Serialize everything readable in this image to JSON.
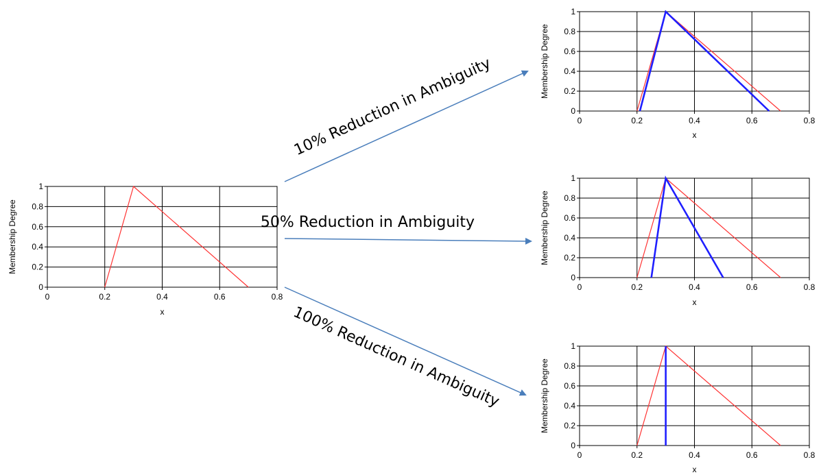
{
  "arrows": [
    {
      "label": "10% Reduction in Ambiguity",
      "color": "#4a7ebb"
    },
    {
      "label": "50% Reduction in Ambiguity",
      "color": "#4a7ebb"
    },
    {
      "label": "100% Reduction in Ambiguity",
      "color": "#4a7ebb"
    }
  ],
  "colors": {
    "original": "#ff3333",
    "reduced": "#1f1fff",
    "grid": "#000000"
  },
  "chart_data": [
    {
      "type": "line",
      "title": "",
      "xlabel": "x",
      "ylabel": "Membership Degree",
      "xlim": [
        0,
        0.8
      ],
      "ylim": [
        0,
        1
      ],
      "xticks": [
        "0",
        "0.2",
        "0.4",
        "0.6",
        "0.8"
      ],
      "yticks": [
        "0",
        "0.2",
        "0.4",
        "0.6",
        "0.8",
        "1"
      ],
      "grid": true,
      "series": [
        {
          "x": [
            0.2,
            0.3,
            0.7
          ],
          "y": [
            0,
            1,
            0
          ],
          "color": "#ff3333"
        }
      ]
    },
    {
      "type": "line",
      "title": "",
      "xlabel": "x",
      "ylabel": "Membership Degree",
      "xlim": [
        0,
        0.8
      ],
      "ylim": [
        0,
        1
      ],
      "xticks": [
        "0",
        "0.2",
        "0.4",
        "0.6",
        "0.8"
      ],
      "yticks": [
        "0",
        "0.2",
        "0.4",
        "0.6",
        "0.8",
        "1"
      ],
      "grid": true,
      "series": [
        {
          "x": [
            0.2,
            0.3,
            0.7
          ],
          "y": [
            0,
            1,
            0
          ],
          "color": "#ff3333"
        },
        {
          "x": [
            0.21,
            0.3,
            0.66
          ],
          "y": [
            0,
            1,
            0
          ],
          "color": "#1f1fff"
        }
      ]
    },
    {
      "type": "line",
      "title": "",
      "xlabel": "x",
      "ylabel": "Membership Degree",
      "xlim": [
        0,
        0.8
      ],
      "ylim": [
        0,
        1
      ],
      "xticks": [
        "0",
        "0.2",
        "0.4",
        "0.6",
        "0.8"
      ],
      "yticks": [
        "0",
        "0.2",
        "0.4",
        "0.6",
        "0.8",
        "1"
      ],
      "grid": true,
      "series": [
        {
          "x": [
            0.2,
            0.3,
            0.7
          ],
          "y": [
            0,
            1,
            0
          ],
          "color": "#ff3333"
        },
        {
          "x": [
            0.25,
            0.3,
            0.5
          ],
          "y": [
            0,
            1,
            0
          ],
          "color": "#1f1fff"
        }
      ]
    },
    {
      "type": "line",
      "title": "",
      "xlabel": "x",
      "ylabel": "Membership Degree",
      "xlim": [
        0,
        0.8
      ],
      "ylim": [
        0,
        1
      ],
      "xticks": [
        "0",
        "0.2",
        "0.4",
        "0.6",
        "0.8"
      ],
      "yticks": [
        "0",
        "0.2",
        "0.4",
        "0.6",
        "0.8",
        "1"
      ],
      "grid": true,
      "series": [
        {
          "x": [
            0.2,
            0.3,
            0.7
          ],
          "y": [
            0,
            1,
            0
          ],
          "color": "#ff3333"
        },
        {
          "x": [
            0.3,
            0.3
          ],
          "y": [
            0,
            1
          ],
          "color": "#1f1fff"
        }
      ]
    }
  ]
}
